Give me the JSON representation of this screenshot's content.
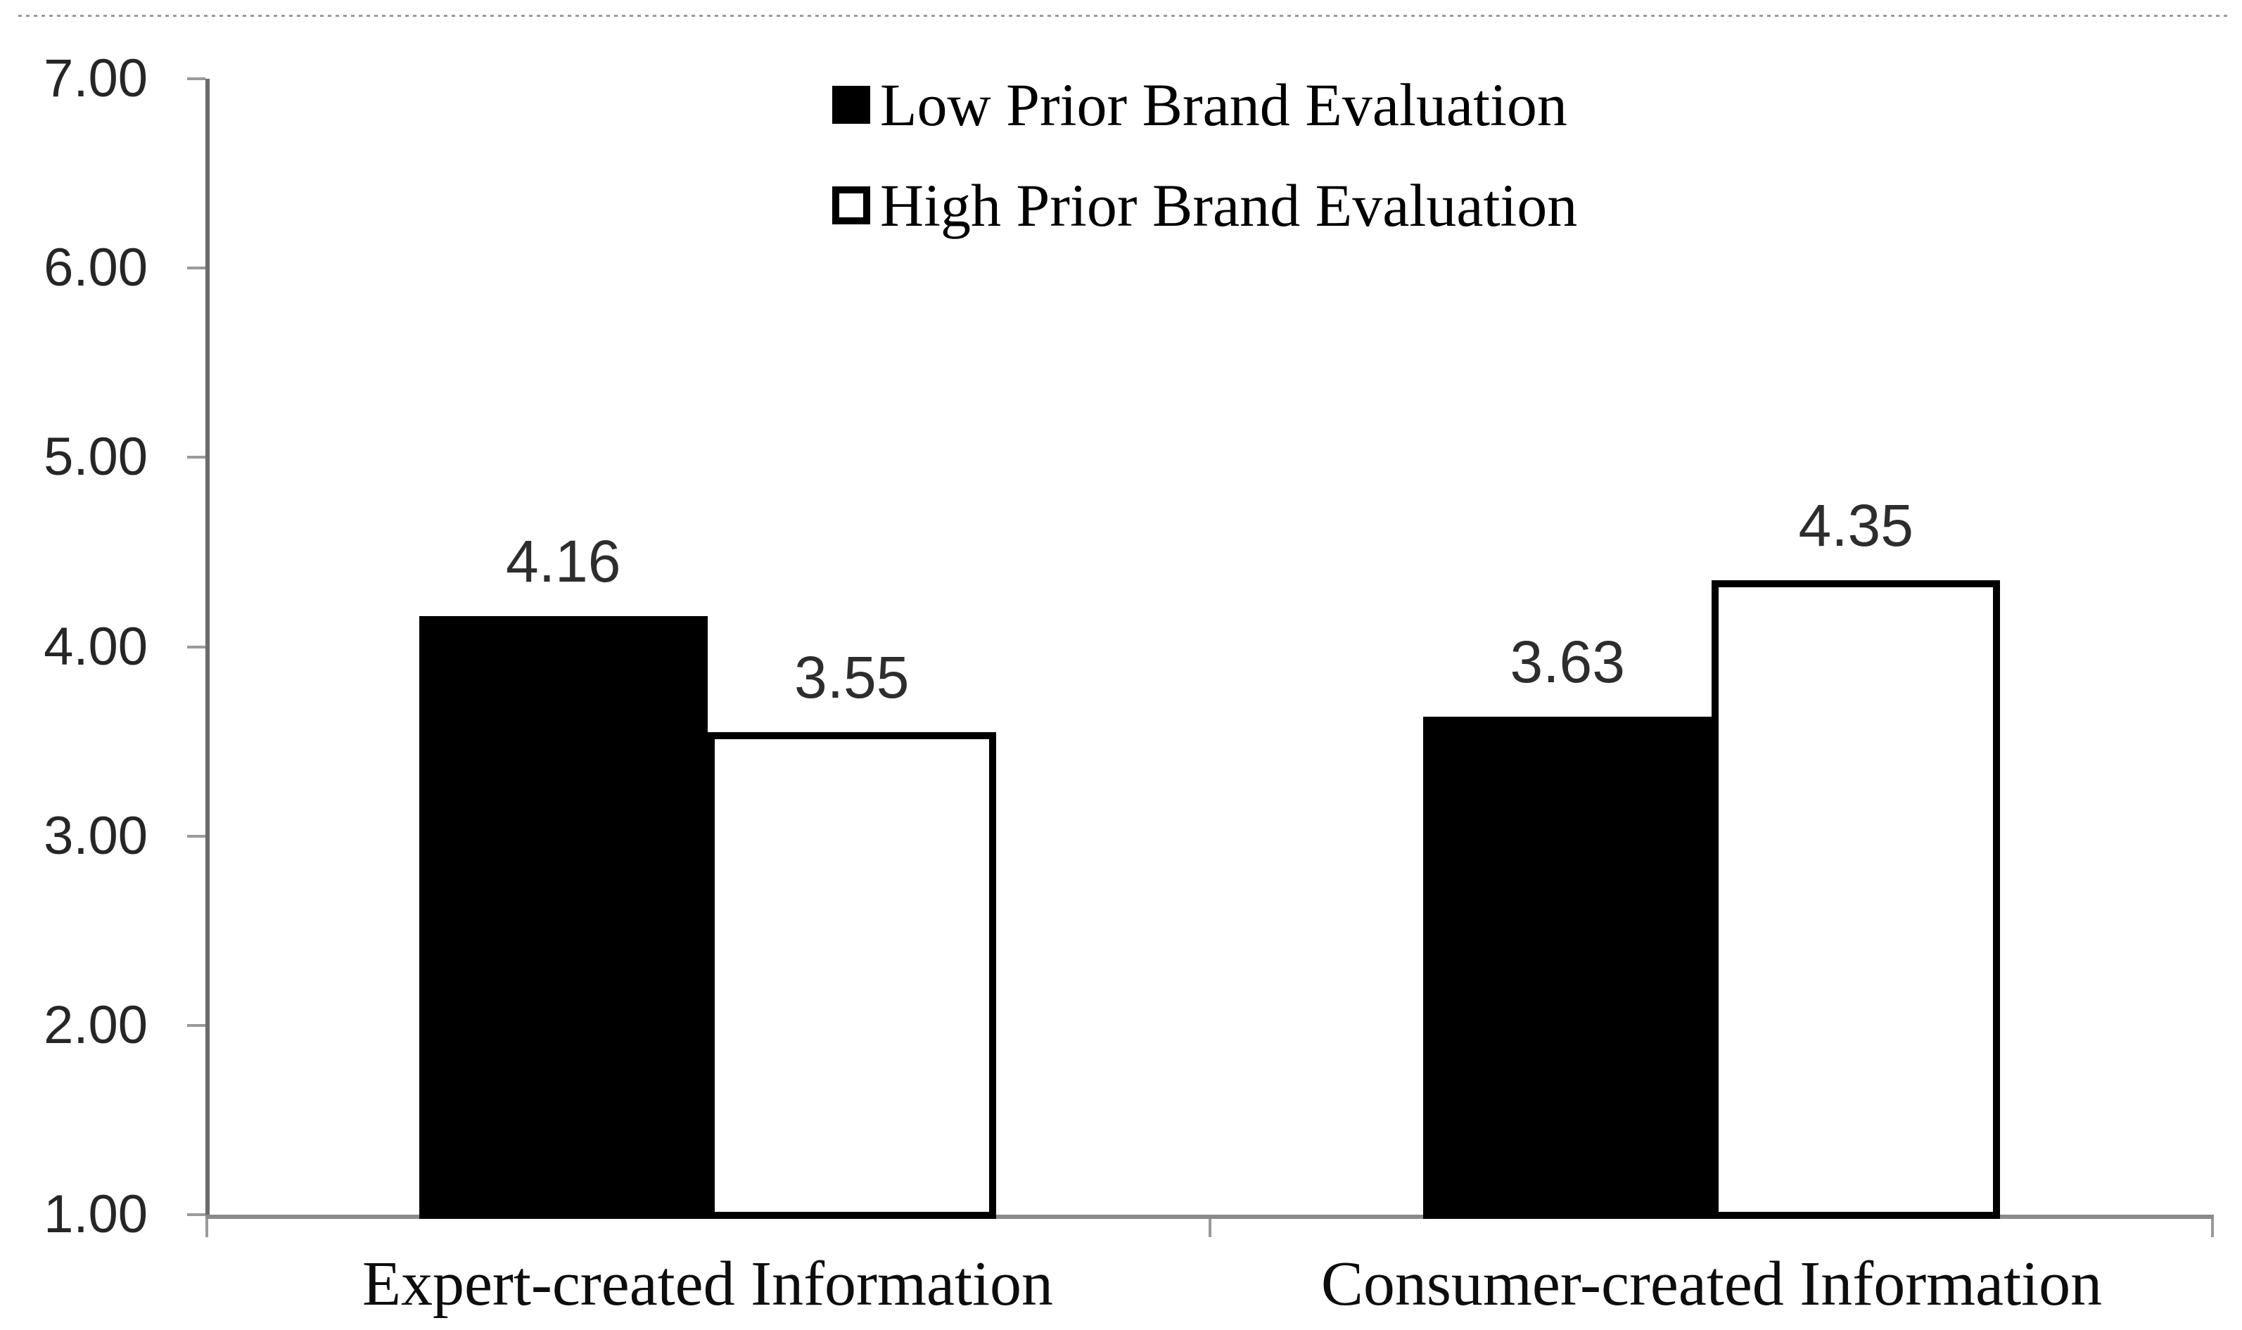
{
  "chart_data": {
    "type": "bar",
    "title": "",
    "categories": [
      "Expert-created Information",
      "Consumer-created Information"
    ],
    "series": [
      {
        "name": "Low Prior Brand Evaluation",
        "swatch": "filled-black",
        "values": [
          4.16,
          3.63
        ],
        "labels": [
          "4.16",
          "3.63"
        ]
      },
      {
        "name": "High Prior Brand Evaluation",
        "swatch": "outlined-white",
        "values": [
          3.55,
          4.35
        ],
        "labels": [
          "3.55",
          "4.35"
        ]
      }
    ],
    "ylim": [
      1.0,
      7.0
    ],
    "ystep": 1.0,
    "ytick_labels": [
      "7.00",
      "6.00",
      "5.00",
      "4.00",
      "3.00",
      "2.00",
      "1.00"
    ],
    "xlabel": "",
    "ylabel": "",
    "grid": false,
    "legend_position": "top-center",
    "colors": {
      "bar_low_fill": "#000000",
      "bar_high_fill": "#ffffff",
      "bar_border": "#000000",
      "y_axis_line": "#6b6b6b",
      "x_axis_line": "#8a8a8a",
      "tick_mark": "#9a9a9a",
      "number_text": "#2d2d2d",
      "label_text": "#000000",
      "top_rule": "#9c9c9c"
    }
  }
}
